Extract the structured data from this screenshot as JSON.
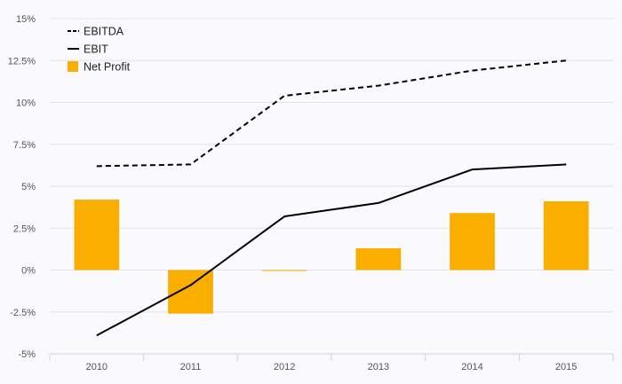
{
  "chart_data": {
    "type": "bar",
    "categories": [
      "2010",
      "2011",
      "2012",
      "2013",
      "2014",
      "2015"
    ],
    "series": [
      {
        "name": "EBITDA",
        "type": "line",
        "style": "dashed",
        "color": "#000000",
        "values": [
          6.2,
          6.3,
          10.4,
          11.0,
          11.9,
          12.5
        ]
      },
      {
        "name": "EBIT",
        "type": "line",
        "style": "solid",
        "color": "#000000",
        "values": [
          -3.9,
          -0.9,
          3.2,
          4.0,
          6.0,
          6.3
        ]
      },
      {
        "name": "Net Profit",
        "type": "bar",
        "color": "#f9ae00",
        "values": [
          4.2,
          -2.6,
          0.0,
          1.3,
          3.4,
          4.1
        ]
      }
    ],
    "ylim": [
      -5,
      15
    ],
    "yticks": [
      -5,
      -2.5,
      0,
      2.5,
      5,
      7.5,
      10,
      12.5,
      15
    ],
    "ytick_labels": [
      "-5%",
      "-2.5%",
      "0%",
      "2.5%",
      "5%",
      "7.5%",
      "10%",
      "12.5%",
      "15%"
    ],
    "grid": true,
    "legend_position": "top-left"
  }
}
